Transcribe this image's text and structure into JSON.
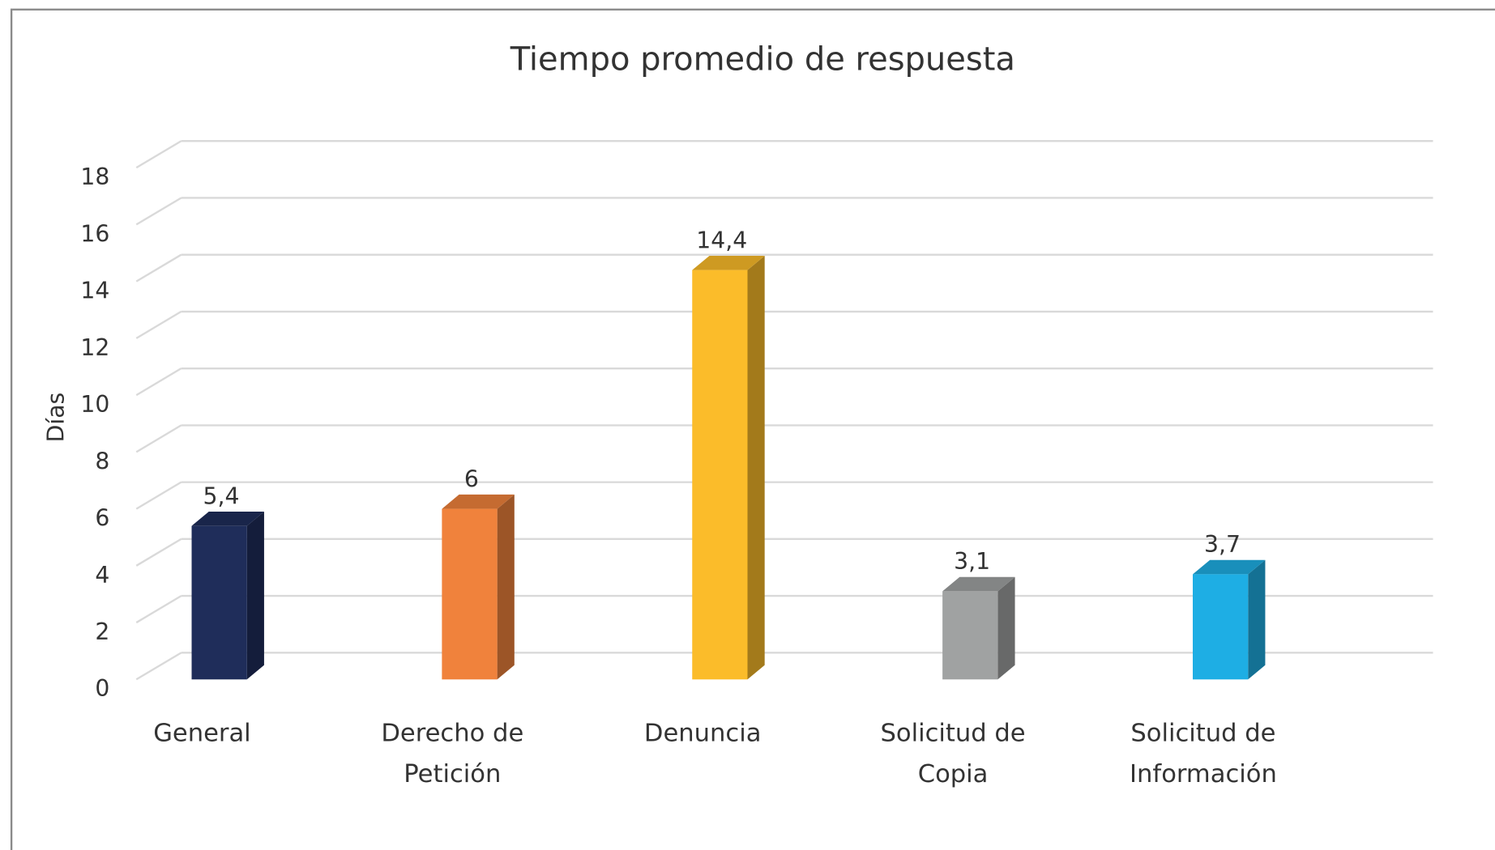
{
  "chart_data": {
    "type": "bar3d",
    "title": "Tiempo promedio de respuesta",
    "y_label": "Días",
    "categories": [
      "General",
      "Derecho de Petición",
      "Denuncia",
      "Solicitud de Copia",
      "Solicitud de Información"
    ],
    "values": [
      5.4,
      6,
      14.4,
      3.1,
      3.7
    ],
    "value_labels": [
      "5,4",
      "6",
      "14,4",
      "3,1",
      "3,7"
    ],
    "colors": [
      "#1f2d5a",
      "#f0823c",
      "#fbbc2a",
      "#a0a2a2",
      "#1eaee4"
    ],
    "ylim": [
      0,
      18
    ],
    "yticks": [
      0,
      2,
      4,
      6,
      8,
      10,
      12,
      14,
      16,
      18
    ],
    "grid": true
  }
}
